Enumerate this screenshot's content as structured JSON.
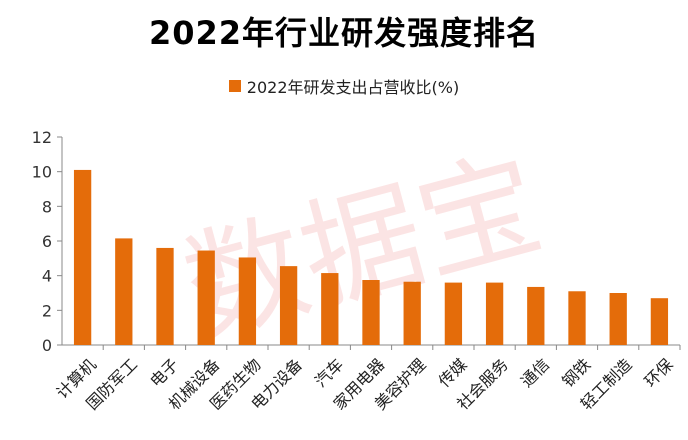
{
  "title": "2022年行业研发强度排名",
  "watermark": "数据宝",
  "chart_data": {
    "type": "bar",
    "title": "2022年行业研发强度排名",
    "categories": [
      "计算机",
      "国防军工",
      "电子",
      "机械设备",
      "医药生物",
      "电力设备",
      "汽车",
      "家用电器",
      "美容护理",
      "传媒",
      "社会服务",
      "通信",
      "钢铁",
      "轻工制造",
      "环保"
    ],
    "series": [
      {
        "name": "2022年研发支出占营收比(%)",
        "values": [
          10.1,
          6.15,
          5.6,
          5.45,
          5.05,
          4.55,
          4.15,
          3.75,
          3.65,
          3.6,
          3.6,
          3.35,
          3.1,
          3.0,
          2.7
        ]
      }
    ],
    "ylim": [
      0,
      12
    ],
    "yticks": [
      0,
      2,
      4,
      6,
      8,
      10,
      12
    ],
    "grid": false,
    "legend_position": "top-center",
    "bar_color": "#E46C0A"
  }
}
